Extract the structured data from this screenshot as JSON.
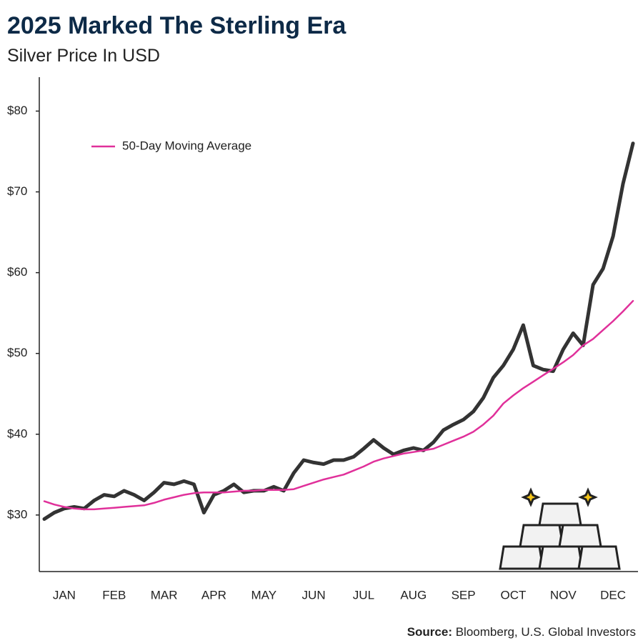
{
  "chart_data": {
    "type": "line",
    "title": "2025 Marked The Sterling Era",
    "subtitle": "Silver Price In USD",
    "source": {
      "label": "Source:",
      "text": "Bloomberg, U.S. Global Investors"
    },
    "categories": [
      null,
      null,
      "JAN",
      null,
      null,
      null,
      null,
      "FEB",
      null,
      null,
      null,
      null,
      "MAR",
      null,
      null,
      null,
      null,
      "APR",
      null,
      null,
      null,
      null,
      "MAY",
      null,
      null,
      null,
      null,
      "JUN",
      null,
      null,
      null,
      null,
      "JUL",
      null,
      null,
      null,
      null,
      "AUG",
      null,
      null,
      null,
      null,
      "SEP",
      null,
      null,
      null,
      null,
      "OCT",
      null,
      null,
      null,
      null,
      "NOV",
      null,
      null,
      null,
      null,
      "DEC",
      null,
      null
    ],
    "series": [
      {
        "color": "#333333",
        "values": [
          29.5,
          30.3,
          30.8,
          31.0,
          30.8,
          31.8,
          32.5,
          32.3,
          33.0,
          32.5,
          31.8,
          32.8,
          34.0,
          33.8,
          34.2,
          33.8,
          30.3,
          32.5,
          33.0,
          33.8,
          32.8,
          33.0,
          33.0,
          33.5,
          33.0,
          35.2,
          36.8,
          36.5,
          36.3,
          36.8,
          36.8,
          37.2,
          38.2,
          39.3,
          38.3,
          37.5,
          38.0,
          38.3,
          38.0,
          39.0,
          40.5,
          41.2,
          41.8,
          42.8,
          44.5,
          47.0,
          48.5,
          50.5,
          53.5,
          48.5,
          48.0,
          47.8,
          50.5,
          52.5,
          51.0,
          58.5,
          60.5,
          64.5,
          71.0,
          76.0
        ]
      },
      {
        "name": "50-Day Moving Average",
        "color": "#e0309a",
        "values": [
          31.7,
          31.3,
          31.0,
          30.8,
          30.7,
          30.7,
          30.8,
          30.9,
          31.0,
          31.1,
          31.2,
          31.5,
          31.9,
          32.2,
          32.5,
          32.7,
          32.8,
          32.8,
          32.8,
          32.9,
          33.0,
          33.0,
          33.1,
          33.1,
          33.1,
          33.2,
          33.6,
          34.0,
          34.4,
          34.7,
          35.0,
          35.5,
          36.0,
          36.6,
          37.0,
          37.3,
          37.6,
          37.8,
          38.0,
          38.2,
          38.7,
          39.2,
          39.7,
          40.3,
          41.2,
          42.3,
          43.8,
          44.8,
          45.7,
          46.5,
          47.3,
          48.1,
          48.9,
          49.8,
          51.0,
          51.8,
          52.9,
          54.0,
          55.2,
          56.5
        ]
      }
    ],
    "ylim": [
      23,
      84.2
    ],
    "yticks": [
      {
        "value": 30,
        "label": "$30"
      },
      {
        "value": 40,
        "label": "$40"
      },
      {
        "value": 50,
        "label": "$50"
      },
      {
        "value": 60,
        "label": "$60"
      },
      {
        "value": 70,
        "label": "$70"
      },
      {
        "value": 80,
        "label": "$80"
      }
    ],
    "legend": "upper left"
  }
}
